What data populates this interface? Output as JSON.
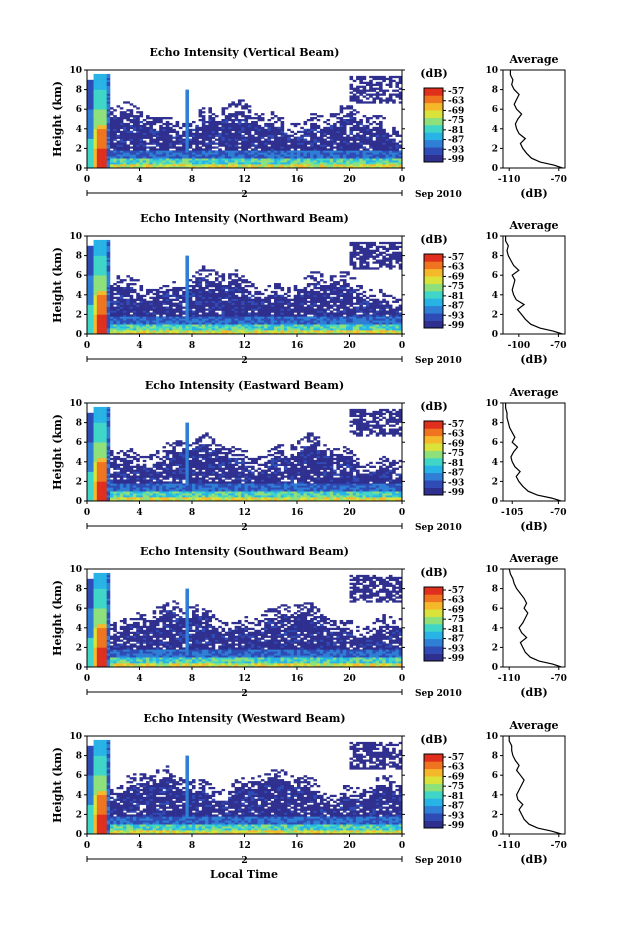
{
  "x_axis_label": "Local Time",
  "date_label": "Sep 2010",
  "colorbar_unit": "(dB)",
  "colorbar_ticks": [
    "-57",
    "-63",
    "-69",
    "-75",
    "-81",
    "-87",
    "-93",
    "-99"
  ],
  "average_title": "Average",
  "average_xlabel": "(dB)",
  "height_label": "Height (km)",
  "colors": {
    "scale": [
      "#2e2f8f",
      "#2f4bb5",
      "#2f7fd6",
      "#28b3e6",
      "#3fd6c8",
      "#8ee07a",
      "#d9e33a",
      "#f5b82a",
      "#f0741f",
      "#e02f1c"
    ]
  },
  "chart_data": [
    {
      "type": "heatmap",
      "title": "Echo Intensity (Vertical Beam)",
      "xlim": [
        0,
        24
      ],
      "ylim": [
        0,
        10
      ],
      "x_ticks": [
        "0",
        "4",
        "8",
        "12",
        "16",
        "20",
        "0"
      ],
      "x_tick_values": [
        0,
        4,
        8,
        12,
        16,
        20,
        24
      ],
      "y_ticks": [
        "0",
        "2",
        "4",
        "6",
        "8",
        "10"
      ],
      "day_label": "2",
      "average": {
        "x_ticks": [
          "-110",
          "-70"
        ],
        "x_tick_values": [
          -110,
          -70
        ],
        "xlim": [
          -115,
          -65
        ],
        "heights": [
          0,
          0.3,
          0.6,
          1,
          1.5,
          2,
          2.5,
          3,
          3.5,
          4,
          4.5,
          5,
          5.5,
          6,
          6.5,
          7,
          7.5,
          8,
          8.5,
          9,
          9.5,
          10
        ],
        "values": [
          -67,
          -74,
          -85,
          -92,
          -96,
          -99,
          -101,
          -97,
          -102,
          -104,
          -105,
          -103,
          -100,
          -104,
          -106,
          -104,
          -102,
          -106,
          -108,
          -107,
          -109,
          -109
        ]
      }
    },
    {
      "type": "heatmap",
      "title": "Echo Intensity (Northward Beam)",
      "xlim": [
        0,
        24
      ],
      "ylim": [
        0,
        10
      ],
      "x_ticks": [
        "0",
        "4",
        "8",
        "12",
        "16",
        "20",
        "0"
      ],
      "x_tick_values": [
        0,
        4,
        8,
        12,
        16,
        20,
        24
      ],
      "y_ticks": [
        "0",
        "2",
        "4",
        "6",
        "8",
        "10"
      ],
      "day_label": "2",
      "average": {
        "x_ticks": [
          "-100",
          "-70"
        ],
        "x_tick_values": [
          -100,
          -70
        ],
        "xlim": [
          -112,
          -65
        ],
        "heights": [
          0,
          0.3,
          0.6,
          1,
          1.5,
          2,
          2.5,
          3,
          3.5,
          4,
          4.5,
          5,
          5.5,
          6,
          6.5,
          7,
          7.5,
          8,
          8.5,
          9,
          9.5,
          10
        ],
        "values": [
          -67,
          -74,
          -84,
          -91,
          -95,
          -98,
          -101,
          -96,
          -102,
          -104,
          -105,
          -104,
          -103,
          -105,
          -100,
          -104,
          -106,
          -108,
          -109,
          -108,
          -110,
          -110
        ]
      }
    },
    {
      "type": "heatmap",
      "title": "Echo Intensity (Eastward Beam)",
      "xlim": [
        0,
        24
      ],
      "ylim": [
        0,
        10
      ],
      "x_ticks": [
        "0",
        "4",
        "8",
        "12",
        "16",
        "20",
        "0"
      ],
      "x_tick_values": [
        0,
        4,
        8,
        12,
        16,
        20,
        24
      ],
      "y_ticks": [
        "0",
        "2",
        "4",
        "6",
        "8",
        "10"
      ],
      "day_label": "2",
      "average": {
        "x_ticks": [
          "-105",
          "-70"
        ],
        "x_tick_values": [
          -105,
          -70
        ],
        "xlim": [
          -112,
          -65
        ],
        "heights": [
          0,
          0.3,
          0.6,
          1,
          1.5,
          2,
          2.5,
          3,
          3.5,
          4,
          4.5,
          5,
          5.5,
          6,
          6.5,
          7,
          7.5,
          8,
          8.5,
          9,
          9.5,
          10
        ],
        "values": [
          -68,
          -75,
          -86,
          -93,
          -97,
          -100,
          -102,
          -99,
          -103,
          -105,
          -106,
          -104,
          -101,
          -105,
          -103,
          -105,
          -107,
          -108,
          -109,
          -109,
          -110,
          -110
        ]
      }
    },
    {
      "type": "heatmap",
      "title": "Echo Intensity (Southward Beam)",
      "xlim": [
        0,
        24
      ],
      "ylim": [
        0,
        10
      ],
      "x_ticks": [
        "0",
        "4",
        "8",
        "12",
        "16",
        "20",
        "0"
      ],
      "x_tick_values": [
        0,
        4,
        8,
        12,
        16,
        20,
        24
      ],
      "y_ticks": [
        "0",
        "2",
        "4",
        "6",
        "8",
        "10"
      ],
      "day_label": "2",
      "average": {
        "x_ticks": [
          "-110",
          "-70"
        ],
        "x_tick_values": [
          -110,
          -70
        ],
        "xlim": [
          -115,
          -65
        ],
        "heights": [
          0,
          0.3,
          0.6,
          1,
          1.5,
          2,
          2.5,
          3,
          3.5,
          4,
          4.5,
          5,
          5.5,
          6,
          6.5,
          7,
          7.5,
          8,
          8.5,
          9,
          9.5,
          10
        ],
        "values": [
          -68,
          -75,
          -86,
          -93,
          -97,
          -99,
          -101,
          -96,
          -100,
          -102,
          -99,
          -97,
          -95,
          -98,
          -96,
          -98,
          -101,
          -104,
          -106,
          -107,
          -109,
          -110
        ]
      }
    },
    {
      "type": "heatmap",
      "title": "Echo Intensity (Westward Beam)",
      "xlim": [
        0,
        24
      ],
      "ylim": [
        0,
        10
      ],
      "x_ticks": [
        "0",
        "4",
        "8",
        "12",
        "16",
        "20",
        "0"
      ],
      "x_tick_values": [
        0,
        4,
        8,
        12,
        16,
        20,
        24
      ],
      "y_ticks": [
        "0",
        "2",
        "4",
        "6",
        "8",
        "10"
      ],
      "day_label": "2",
      "average": {
        "x_ticks": [
          "-110",
          "-70"
        ],
        "x_tick_values": [
          -110,
          -70
        ],
        "xlim": [
          -115,
          -65
        ],
        "heights": [
          0,
          0.3,
          0.6,
          1,
          1.5,
          2,
          2.5,
          3,
          3.5,
          4,
          4.5,
          5,
          5.5,
          6,
          6.5,
          7,
          7.5,
          8,
          8.5,
          9,
          9.5,
          10
        ],
        "values": [
          -68,
          -76,
          -87,
          -94,
          -98,
          -100,
          -102,
          -99,
          -103,
          -104,
          -102,
          -100,
          -98,
          -101,
          -104,
          -102,
          -105,
          -107,
          -108,
          -108,
          -110,
          -110
        ]
      }
    }
  ]
}
